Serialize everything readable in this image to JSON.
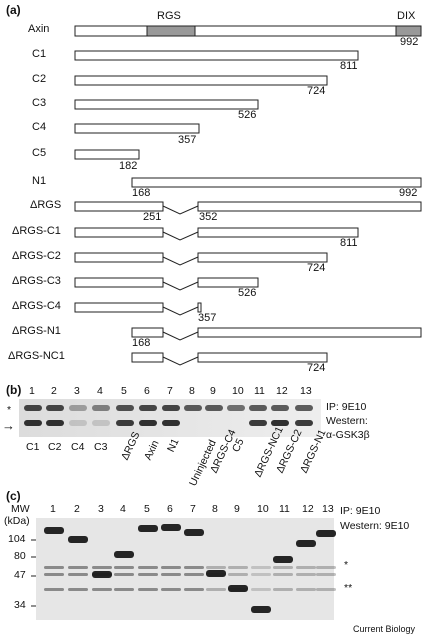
{
  "panel_a": {
    "label": "(a)",
    "domain_labels": {
      "rgs": "RGS",
      "dix": "DIX"
    },
    "constructs": [
      {
        "name": "Axin",
        "end": "992"
      },
      {
        "name": "C1",
        "end": "811"
      },
      {
        "name": "C2",
        "end": "724"
      },
      {
        "name": "C3",
        "end": "526"
      },
      {
        "name": "C4",
        "end": "357"
      },
      {
        "name": "C5",
        "end": "182"
      },
      {
        "name": "N1",
        "start": "168",
        "end": "992"
      },
      {
        "name": "ΔRGS",
        "left": "251",
        "right": "352"
      },
      {
        "name": "ΔRGS-C1",
        "end": "811"
      },
      {
        "name": "ΔRGS-C2",
        "end": "724"
      },
      {
        "name": "ΔRGS-C3",
        "end": "526"
      },
      {
        "name": "ΔRGS-C4",
        "end": "357"
      },
      {
        "name": "ΔRGS-N1",
        "start": "168"
      },
      {
        "name": "ΔRGS-NC1",
        "end": "724"
      }
    ]
  },
  "panel_b": {
    "label": "(b)",
    "lanes": [
      "1",
      "2",
      "3",
      "4",
      "5",
      "6",
      "7",
      "8",
      "9",
      "10",
      "11",
      "12",
      "13"
    ],
    "ip": "IP: 9E10",
    "western": "Western:",
    "antibody": "α-GSK3β",
    "star": "*",
    "arrow": "→",
    "lane_labels": [
      "C1",
      "C2",
      "C4",
      "C3",
      "ΔRGS",
      "Axin",
      "N1",
      "Uninjected",
      "ΔRGS-C4",
      "C5",
      "ΔRGS-NC1",
      "ΔRGS-C2",
      "ΔRGS-N1"
    ]
  },
  "panel_c": {
    "label": "(c)",
    "lanes": [
      "1",
      "2",
      "3",
      "4",
      "5",
      "6",
      "7",
      "8",
      "9",
      "10",
      "11",
      "12",
      "13"
    ],
    "mw_title": "MW",
    "mw_unit": "(kDa)",
    "mw_markers": [
      "104",
      "80",
      "47",
      "34"
    ],
    "ip": "IP: 9E10",
    "western": "Western: 9E10",
    "star": "*",
    "double_star": "**"
  },
  "credit": "Current Biology"
}
